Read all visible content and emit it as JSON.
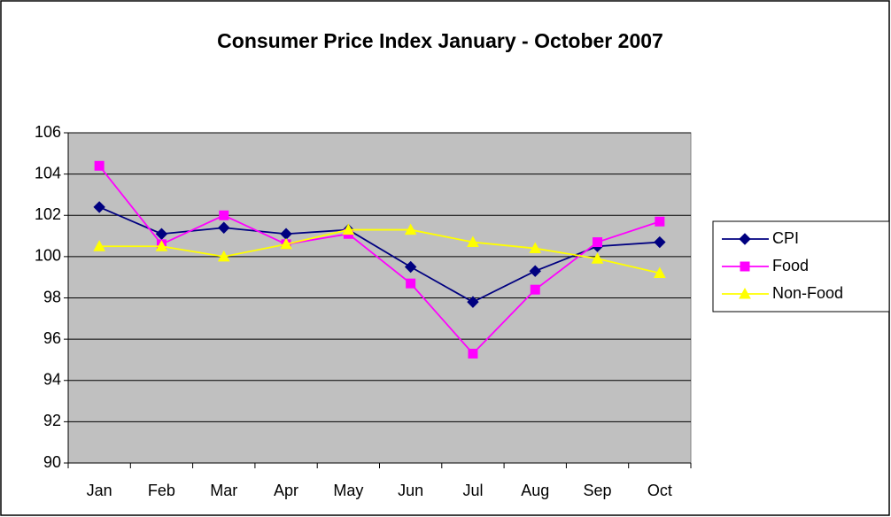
{
  "chart_data": {
    "type": "line",
    "title": "Consumer Price Index January - October 2007",
    "categories": [
      "Jan",
      "Feb",
      "Mar",
      "Apr",
      "May",
      "Jun",
      "Jul",
      "Aug",
      "Sep",
      "Oct"
    ],
    "series": [
      {
        "name": "CPI",
        "color": "#000080",
        "marker": "diamond",
        "values": [
          102.4,
          101.1,
          101.4,
          101.1,
          101.3,
          99.5,
          97.8,
          99.3,
          100.5,
          100.7
        ]
      },
      {
        "name": "Food",
        "color": "#ff00ff",
        "marker": "square",
        "values": [
          104.4,
          100.6,
          102.0,
          100.6,
          101.1,
          98.7,
          95.3,
          98.4,
          100.7,
          101.7
        ]
      },
      {
        "name": "Non-Food",
        "color": "#ffff00",
        "marker": "triangle",
        "values": [
          100.5,
          100.5,
          100.0,
          100.6,
          101.3,
          101.3,
          100.7,
          100.4,
          99.9,
          99.2
        ]
      }
    ],
    "ylim": [
      90,
      106
    ],
    "yticks": [
      90,
      92,
      94,
      96,
      98,
      100,
      102,
      104,
      106
    ],
    "grid": true,
    "legend": "right",
    "plot_background": "#c0c0c0"
  }
}
